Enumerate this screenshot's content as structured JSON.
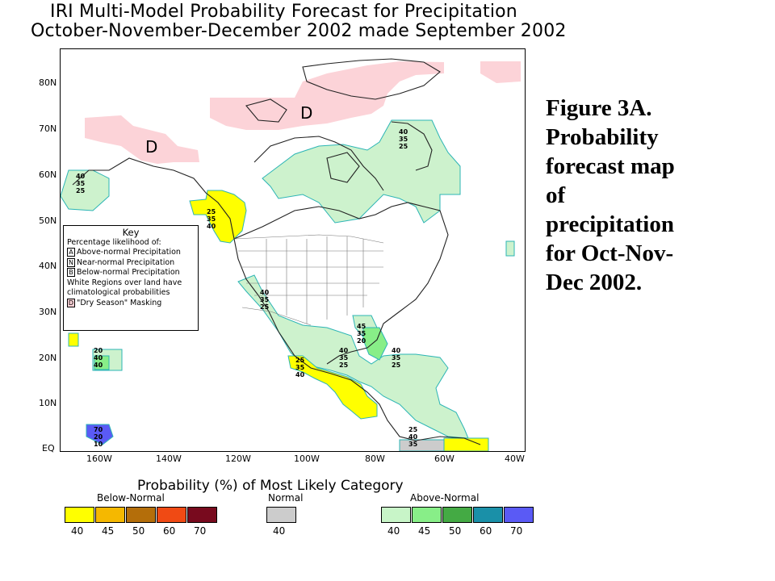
{
  "map": {
    "title_line1": "IRI Multi-Model Probability Forecast for Precipitation",
    "title_line2": "October-November-December 2002 made September 2002",
    "lat_labels": [
      "80N",
      "70N",
      "60N",
      "50N",
      "40N",
      "30N",
      "20N",
      "10N",
      "EQ"
    ],
    "lon_labels": [
      "160W",
      "140W",
      "120W",
      "100W",
      "80W",
      "60W",
      "40W"
    ],
    "dry_season_marks": [
      "D",
      "D"
    ],
    "key": {
      "title": "Key",
      "subtitle": "Percentage likelihood of:",
      "items": [
        {
          "letter": "A",
          "text": "Above-normal Precipitation"
        },
        {
          "letter": "N",
          "text": "Near-normal Precipitation"
        },
        {
          "letter": "B",
          "text": "Below-normal Precipitation"
        }
      ],
      "note1": "White Regions over land have",
      "note2": "climatological probabilities",
      "dry_letter": "D",
      "dry_text": "\"Dry Season\" Masking"
    },
    "station_triplets": [
      {
        "name": "alaska",
        "values": [
          "40",
          "35",
          "25"
        ]
      },
      {
        "name": "pacific-nw",
        "values": [
          "25",
          "35",
          "40"
        ]
      },
      {
        "name": "sw-us",
        "values": [
          "40",
          "35",
          "25"
        ]
      },
      {
        "name": "hudson-strait",
        "values": [
          "40",
          "35",
          "25"
        ]
      },
      {
        "name": "hawaii",
        "values": [
          "20",
          "40",
          "40"
        ]
      },
      {
        "name": "mexico",
        "values": [
          "25",
          "35",
          "40"
        ]
      },
      {
        "name": "gulf",
        "values": [
          "40",
          "35",
          "25"
        ]
      },
      {
        "name": "florida",
        "values": [
          "45",
          "35",
          "20"
        ]
      },
      {
        "name": "caribbean",
        "values": [
          "40",
          "35",
          "25"
        ]
      },
      {
        "name": "equatorial-pacific",
        "values": [
          "70",
          "20",
          "10"
        ]
      },
      {
        "name": "northern-sa",
        "values": [
          "25",
          "40",
          "35"
        ]
      }
    ]
  },
  "legend": {
    "title": "Probability (%) of Most Likely Category",
    "below_label": "Below-Normal",
    "normal_label": "Normal",
    "above_label": "Above-Normal",
    "below": [
      {
        "value": "40",
        "color": "#ffff00"
      },
      {
        "value": "45",
        "color": "#f5b800"
      },
      {
        "value": "50",
        "color": "#b46e0a"
      },
      {
        "value": "60",
        "color": "#f04a14"
      },
      {
        "value": "70",
        "color": "#780a1e"
      }
    ],
    "normal": [
      {
        "value": "40",
        "color": "#cccccc"
      }
    ],
    "above": [
      {
        "value": "40",
        "color": "#c8f5c8"
      },
      {
        "value": "45",
        "color": "#88ee88"
      },
      {
        "value": "50",
        "color": "#44aa44"
      },
      {
        "value": "60",
        "color": "#1a90a8"
      },
      {
        "value": "70",
        "color": "#5a5af5"
      }
    ]
  },
  "caption": "Figure  3A.\nProbability\n forecast map\nof\n precipitation\n for Oct-Nov-\nDec 2002."
}
